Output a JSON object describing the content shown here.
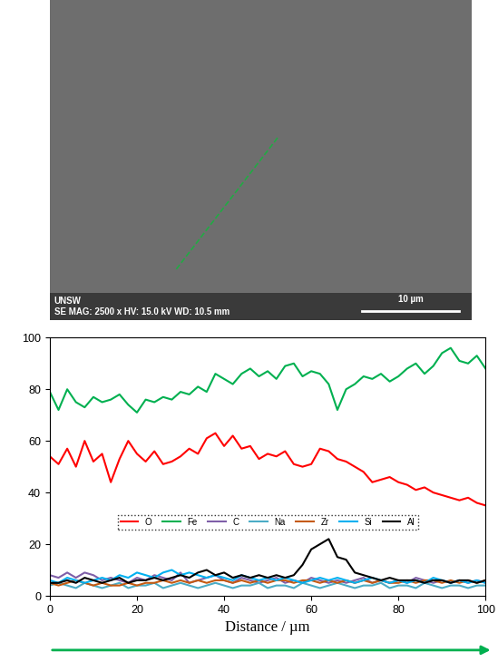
{
  "chart_data": {
    "type": "line",
    "x_label": "Distance / µm",
    "x": [
      0,
      2,
      4,
      6,
      8,
      10,
      12,
      14,
      16,
      18,
      20,
      22,
      24,
      26,
      28,
      30,
      32,
      34,
      36,
      38,
      40,
      42,
      44,
      46,
      48,
      50,
      52,
      54,
      56,
      58,
      60,
      62,
      64,
      66,
      68,
      70,
      72,
      74,
      76,
      78,
      80,
      82,
      84,
      86,
      88,
      90,
      92,
      94,
      96,
      98,
      100
    ],
    "series": [
      {
        "name": "O",
        "color": "#ff0000",
        "values": [
          54,
          51,
          57,
          50,
          60,
          52,
          55,
          44,
          53,
          60,
          55,
          52,
          56,
          51,
          52,
          54,
          57,
          55,
          61,
          63,
          58,
          62,
          57,
          58,
          53,
          55,
          54,
          56,
          51,
          50,
          51,
          57,
          56,
          53,
          52,
          50,
          48,
          44,
          45,
          46,
          44,
          43,
          41,
          42,
          40,
          39,
          38,
          37,
          38,
          36,
          35
        ]
      },
      {
        "name": "Fe",
        "color": "#00b050",
        "values": [
          79,
          72,
          80,
          75,
          73,
          77,
          75,
          76,
          78,
          74,
          71,
          76,
          75,
          77,
          76,
          79,
          78,
          81,
          79,
          86,
          84,
          82,
          86,
          88,
          85,
          87,
          84,
          89,
          90,
          85,
          87,
          86,
          82,
          72,
          80,
          82,
          85,
          84,
          86,
          83,
          85,
          88,
          90,
          86,
          89,
          94,
          96,
          91,
          90,
          93,
          88
        ]
      },
      {
        "name": "C",
        "color": "#7f5fa8",
        "values": [
          8,
          7,
          9,
          7,
          9,
          8,
          6,
          7,
          6,
          5,
          7,
          6,
          8,
          7,
          6,
          9,
          5,
          6,
          7,
          8,
          6,
          5,
          7,
          6,
          5,
          6,
          7,
          5,
          6,
          5,
          7,
          6,
          5,
          6,
          5,
          6,
          7,
          5,
          6,
          5,
          6,
          5,
          7,
          6,
          5,
          6,
          5,
          6,
          5,
          6,
          5
        ]
      },
      {
        "name": "Na",
        "color": "#4bacc6",
        "values": [
          4,
          5,
          4,
          3,
          5,
          4,
          3,
          4,
          5,
          3,
          4,
          4,
          5,
          3,
          4,
          5,
          4,
          3,
          4,
          5,
          4,
          3,
          4,
          4,
          5,
          3,
          4,
          4,
          3,
          5,
          4,
          3,
          4,
          5,
          4,
          3,
          4,
          4,
          5,
          3,
          4,
          4,
          3,
          5,
          4,
          3,
          4,
          4,
          3,
          4,
          4
        ]
      },
      {
        "name": "Zr",
        "color": "#c55a11",
        "values": [
          5,
          4,
          5,
          6,
          5,
          4,
          5,
          4,
          4,
          5,
          4,
          5,
          5,
          6,
          5,
          6,
          5,
          6,
          5,
          6,
          6,
          5,
          6,
          5,
          6,
          5,
          6,
          6,
          5,
          6,
          6,
          5,
          6,
          5,
          6,
          5,
          6,
          5,
          6,
          5,
          5,
          6,
          5,
          6,
          6,
          5,
          6,
          5,
          6,
          5,
          6
        ]
      },
      {
        "name": "Si",
        "color": "#00b0f0",
        "values": [
          6,
          5,
          7,
          6,
          5,
          6,
          7,
          6,
          8,
          7,
          9,
          8,
          7,
          9,
          10,
          8,
          9,
          8,
          7,
          8,
          7,
          6,
          8,
          7,
          6,
          7,
          6,
          7,
          6,
          5,
          6,
          7,
          6,
          7,
          6,
          5,
          6,
          7,
          6,
          5,
          6,
          5,
          6,
          5,
          7,
          6,
          5,
          6,
          5,
          6,
          5
        ]
      },
      {
        "name": "Al",
        "color": "#000000",
        "values": [
          5,
          5,
          6,
          5,
          7,
          6,
          5,
          6,
          7,
          5,
          6,
          6,
          7,
          6,
          7,
          8,
          7,
          9,
          10,
          8,
          9,
          7,
          8,
          7,
          8,
          7,
          8,
          7,
          8,
          12,
          18,
          20,
          22,
          15,
          14,
          9,
          8,
          7,
          6,
          7,
          6,
          6,
          6,
          5,
          6,
          6,
          5,
          6,
          6,
          5,
          6
        ]
      }
    ],
    "xlim": [
      0,
      100
    ],
    "xticks": [
      0,
      20,
      40,
      60,
      80,
      100
    ],
    "ylim": [
      0,
      100
    ],
    "yticks": [
      0,
      20,
      40,
      60,
      80,
      100
    ],
    "grid": false,
    "legend": "center"
  },
  "micrograph": {
    "labels": [
      "UNSW",
      "SE MAG: 2500 x HV: 15.0 kV WD: 10.5 mm"
    ],
    "scale_bar": "10 µm"
  }
}
